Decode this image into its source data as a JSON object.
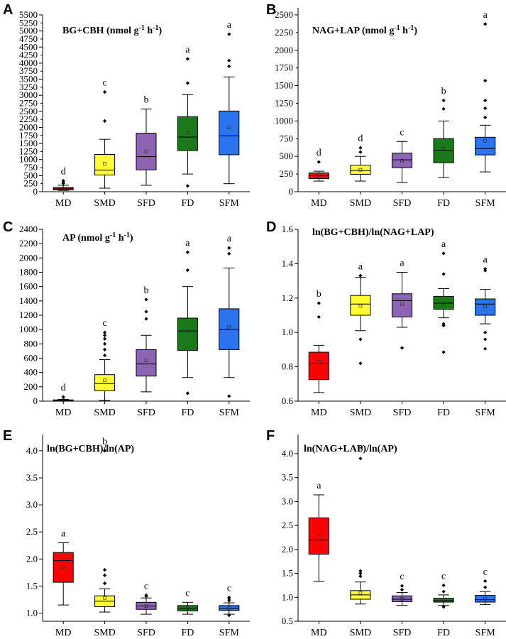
{
  "figure": {
    "categories": [
      "MD",
      "SMD",
      "SFD",
      "FD",
      "SFM"
    ],
    "colors": [
      "#ff0000",
      "#ffff33",
      "#8c64b4",
      "#1a7a1a",
      "#2a74f0"
    ]
  },
  "chart_data": [
    {
      "type": "box",
      "panel": "A",
      "title": "BG+CBH (nmol g",
      "title_sup1": "-1",
      "title_mid": " h",
      "title_sup2": "-1",
      "title_end": ")",
      "ylim": [
        0,
        5500
      ],
      "yticks": [
        "0",
        "250",
        "500",
        "750",
        "1000",
        "1250",
        "1500",
        "1750",
        "2000",
        "2250",
        "2500",
        "2750",
        "3000",
        "3250",
        "3500",
        "3750",
        "4000",
        "4250",
        "4500",
        "4750",
        "5000",
        "5250",
        "5500"
      ],
      "ytick_values": [
        0,
        250,
        500,
        750,
        1000,
        1250,
        1500,
        1750,
        2000,
        2250,
        2500,
        2750,
        3000,
        3250,
        3500,
        3750,
        4000,
        4250,
        4500,
        4750,
        5000,
        5250,
        5500
      ],
      "tick_label_every": 2,
      "boxes": [
        {
          "cat": "MD",
          "min": 40,
          "q1": 55,
          "median": 90,
          "q3": 130,
          "max": 200,
          "mean": 100,
          "outliers": [
            260,
            300,
            340
          ],
          "letter": "d"
        },
        {
          "cat": "SMD",
          "min": 110,
          "q1": 520,
          "median": 670,
          "q3": 1160,
          "max": 1630,
          "mean": 870,
          "outliers": [
            2200,
            3100
          ],
          "letter": "c"
        },
        {
          "cat": "SFD",
          "min": 200,
          "q1": 680,
          "median": 1090,
          "q3": 1820,
          "max": 2570,
          "mean": 1260,
          "outliers": [],
          "letter": "b"
        },
        {
          "cat": "FD",
          "min": 550,
          "q1": 1280,
          "median": 1700,
          "q3": 2330,
          "max": 3020,
          "mean": 1830,
          "outliers": [
            180,
            3380,
            4130
          ],
          "letter": "a"
        },
        {
          "cat": "SFM",
          "min": 250,
          "q1": 1150,
          "median": 1740,
          "q3": 2510,
          "max": 3570,
          "mean": 2000,
          "outliers": [
            3900,
            4080,
            4900
          ],
          "letter": "a"
        }
      ]
    },
    {
      "type": "box",
      "panel": "B",
      "title": "NAG+LAP (nmol g",
      "title_sup1": "-1",
      "title_mid": " h",
      "title_sup2": "-1",
      "title_end": ")",
      "ylim": [
        0,
        2600
      ],
      "yticks": [
        "0",
        "250",
        "500",
        "750",
        "1000",
        "1250",
        "1500",
        "1750",
        "2000",
        "2250",
        "2500"
      ],
      "ytick_values": [
        0,
        250,
        500,
        750,
        1000,
        1250,
        1500,
        1750,
        2000,
        2250,
        2500
      ],
      "tick_label_every": 2,
      "boxes": [
        {
          "cat": "MD",
          "min": 150,
          "q1": 185,
          "median": 225,
          "q3": 265,
          "max": 290,
          "mean": 230,
          "outliers": [
            420
          ],
          "letter": "d"
        },
        {
          "cat": "SMD",
          "min": 150,
          "q1": 245,
          "median": 300,
          "q3": 375,
          "max": 500,
          "mean": 310,
          "outliers": [
            560,
            620
          ],
          "letter": "d"
        },
        {
          "cat": "SFD",
          "min": 130,
          "q1": 340,
          "median": 450,
          "q3": 545,
          "max": 710,
          "mean": 440,
          "outliers": [],
          "letter": "c"
        },
        {
          "cat": "FD",
          "min": 200,
          "q1": 410,
          "median": 580,
          "q3": 750,
          "max": 1000,
          "mean": 610,
          "outliers": [
            1170,
            1290
          ],
          "letter": "b"
        },
        {
          "cat": "SFM",
          "min": 280,
          "q1": 520,
          "median": 610,
          "q3": 770,
          "max": 940,
          "mean": 720,
          "outliers": [
            1050,
            1180,
            1290,
            1570,
            2370
          ],
          "letter": "a"
        }
      ]
    },
    {
      "type": "box",
      "panel": "C",
      "title": "AP (nmol g",
      "title_sup1": "-1",
      "title_mid": " h",
      "title_sup2": "-1",
      "title_end": ")",
      "ylim": [
        0,
        2400
      ],
      "yticks": [
        "0",
        "200",
        "400",
        "600",
        "800",
        "1000",
        "1200",
        "1400",
        "1600",
        "1800",
        "2000",
        "2200",
        "2400"
      ],
      "ytick_values": [
        0,
        200,
        400,
        600,
        800,
        1000,
        1200,
        1400,
        1600,
        1800,
        2000,
        2200,
        2400
      ],
      "tick_label_every": 1,
      "boxes": [
        {
          "cat": "MD",
          "min": 5,
          "q1": 8,
          "median": 12,
          "q3": 18,
          "max": 25,
          "mean": 14,
          "outliers": [
            60
          ],
          "letter": "d"
        },
        {
          "cat": "SMD",
          "min": 10,
          "q1": 145,
          "median": 245,
          "q3": 370,
          "max": 580,
          "mean": 290,
          "outliers": [
            640,
            720,
            800,
            870,
            920,
            960
          ],
          "letter": "c"
        },
        {
          "cat": "SFD",
          "min": 130,
          "q1": 350,
          "median": 520,
          "q3": 720,
          "max": 920,
          "mean": 570,
          "outliers": [
            1150,
            1250,
            1420
          ],
          "letter": "b"
        },
        {
          "cat": "FD",
          "min": 330,
          "q1": 710,
          "median": 980,
          "q3": 1160,
          "max": 1600,
          "mean": 980,
          "outliers": [
            110,
            1830,
            2080
          ],
          "letter": "a"
        },
        {
          "cat": "SFM",
          "min": 330,
          "q1": 720,
          "median": 1000,
          "q3": 1290,
          "max": 1860,
          "mean": 1040,
          "outliers": [
            70,
            2060,
            2140
          ],
          "letter": "a"
        }
      ]
    },
    {
      "type": "box",
      "panel": "D",
      "title": "ln(BG+CBH)/ln(NAG+LAP)",
      "ylim": [
        0.6,
        1.6
      ],
      "yticks": [
        "0.6",
        "0.8",
        "1.0",
        "1.2",
        "1.4",
        "1.6"
      ],
      "ytick_values": [
        0.6,
        0.8,
        1.0,
        1.2,
        1.4,
        1.6
      ],
      "tick_label_every": 1,
      "boxes": [
        {
          "cat": "MD",
          "min": 0.65,
          "q1": 0.725,
          "median": 0.82,
          "q3": 0.885,
          "max": 0.925,
          "mean": 0.83,
          "outliers": [
            1.09,
            1.17
          ],
          "letter": "b"
        },
        {
          "cat": "SMD",
          "min": 1.01,
          "q1": 1.1,
          "median": 1.165,
          "q3": 1.215,
          "max": 1.32,
          "mean": 1.155,
          "outliers": [
            0.82,
            0.96,
            1.33
          ],
          "letter": "a"
        },
        {
          "cat": "SFD",
          "min": 1.03,
          "q1": 1.09,
          "median": 1.185,
          "q3": 1.225,
          "max": 1.35,
          "mean": 1.165,
          "outliers": [
            0.91
          ],
          "letter": "a"
        },
        {
          "cat": "FD",
          "min": 1.085,
          "q1": 1.135,
          "median": 1.17,
          "q3": 1.21,
          "max": 1.255,
          "mean": 1.165,
          "outliers": [
            0.885,
            1.04,
            1.05,
            1.34,
            1.46
          ],
          "letter": "a"
        },
        {
          "cat": "SFM",
          "min": 1.05,
          "q1": 1.1,
          "median": 1.165,
          "q3": 1.195,
          "max": 1.25,
          "mean": 1.15,
          "outliers": [
            0.905,
            0.96,
            1.0,
            1.36,
            1.37
          ],
          "letter": "a"
        }
      ]
    },
    {
      "type": "box",
      "panel": "E",
      "title": "ln(BG+CBH)/ln(AP)",
      "ylim": [
        0.85,
        4.3
      ],
      "yticks": [
        "1.0",
        "1.5",
        "2.0",
        "2.5",
        "3.0",
        "3.5",
        "4.0"
      ],
      "ytick_values": [
        1.0,
        1.5,
        2.0,
        2.5,
        3.0,
        3.5,
        4.0
      ],
      "tick_label_every": 1,
      "boxes": [
        {
          "cat": "MD",
          "min": 1.15,
          "q1": 1.57,
          "median": 1.97,
          "q3": 2.12,
          "max": 2.3,
          "mean": 1.85,
          "outliers": [],
          "letter": "a"
        },
        {
          "cat": "SMD",
          "min": 1.02,
          "q1": 1.12,
          "median": 1.22,
          "q3": 1.32,
          "max": 1.45,
          "mean": 1.28,
          "outliers": [
            1.55,
            1.7,
            1.8,
            4.0
          ],
          "letter": "b"
        },
        {
          "cat": "SFD",
          "min": 0.98,
          "q1": 1.07,
          "median": 1.13,
          "q3": 1.2,
          "max": 1.28,
          "mean": 1.13,
          "outliers": [
            1.31,
            1.33
          ],
          "letter": "c"
        },
        {
          "cat": "FD",
          "min": 0.98,
          "q1": 1.04,
          "median": 1.09,
          "q3": 1.14,
          "max": 1.2,
          "mean": 1.09,
          "outliers": [],
          "letter": "c"
        },
        {
          "cat": "SFM",
          "min": 0.98,
          "q1": 1.05,
          "median": 1.09,
          "q3": 1.14,
          "max": 1.19,
          "mean": 1.09,
          "outliers": [
            0.96,
            1.23,
            1.26,
            1.29
          ],
          "letter": "c"
        }
      ]
    },
    {
      "type": "box",
      "panel": "F",
      "title": "ln(NAG+LAP)/ln(AP)",
      "ylim": [
        0.5,
        4.4
      ],
      "yticks": [
        "0.5",
        "1.0",
        "1.5",
        "2.0",
        "2.5",
        "3.0",
        "3.5",
        "4.0"
      ],
      "ytick_values": [
        0.5,
        1.0,
        1.5,
        2.0,
        2.5,
        3.0,
        3.5,
        4.0
      ],
      "tick_label_every": 1,
      "boxes": [
        {
          "cat": "MD",
          "min": 1.33,
          "q1": 1.9,
          "median": 2.2,
          "q3": 2.66,
          "max": 3.14,
          "mean": 2.27,
          "outliers": [],
          "letter": "a"
        },
        {
          "cat": "SMD",
          "min": 0.86,
          "q1": 0.96,
          "median": 1.05,
          "q3": 1.14,
          "max": 1.32,
          "mean": 1.09,
          "outliers": [
            1.44,
            1.5,
            1.55,
            3.9
          ],
          "letter": "b"
        },
        {
          "cat": "SFD",
          "min": 0.83,
          "q1": 0.91,
          "median": 0.96,
          "q3": 1.03,
          "max": 1.1,
          "mean": 0.97,
          "outliers": [
            1.16,
            1.24
          ],
          "letter": "c"
        },
        {
          "cat": "FD",
          "min": 0.83,
          "q1": 0.9,
          "median": 0.93,
          "q3": 0.98,
          "max": 1.05,
          "mean": 0.94,
          "outliers": [
            0.8,
            1.12,
            1.25
          ],
          "letter": "c"
        },
        {
          "cat": "SFM",
          "min": 0.85,
          "q1": 0.9,
          "median": 0.95,
          "q3": 1.04,
          "max": 1.12,
          "mean": 0.97,
          "outliers": [
            1.21,
            1.34
          ],
          "letter": "c"
        }
      ]
    }
  ]
}
